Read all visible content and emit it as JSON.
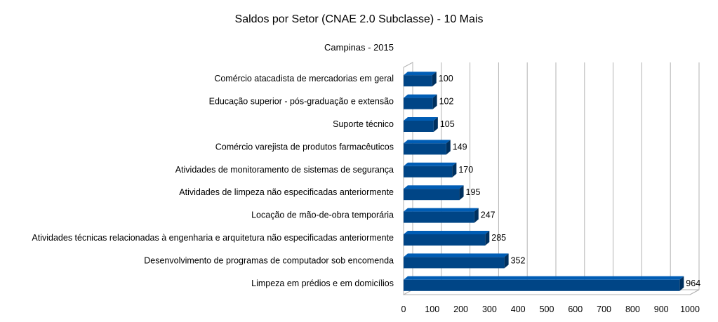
{
  "chart_data": {
    "type": "bar",
    "orientation": "horizontal",
    "title": "Saldos por Setor (CNAE 2.0 Subclasse) - 10 Mais",
    "subtitle": "Campinas - 2015",
    "categories": [
      "Comércio atacadista de mercadorias em geral",
      "Educação superior - pós-graduação e extensão",
      "Suporte técnico",
      "Comércio varejista de produtos farmacêuticos",
      "Atividades de monitoramento de sistemas de segurança",
      "Atividades de limpeza não especificadas anteriormente",
      "Locação de mão-de-obra temporária",
      "Atividades técnicas relacionadas à engenharia e arquitetura não especificadas anteriormente",
      "Desenvolvimento de programas de computador sob encomenda",
      "Limpeza em prédios e em domicílios"
    ],
    "values": [
      100,
      102,
      105,
      149,
      170,
      195,
      247,
      285,
      352,
      964
    ],
    "xlim": [
      0,
      1000
    ],
    "xticks": [
      0,
      100,
      200,
      300,
      400,
      500,
      600,
      700,
      800,
      900,
      1000
    ],
    "grid": true,
    "bar_color": "#004586",
    "bar_style": "3d"
  }
}
